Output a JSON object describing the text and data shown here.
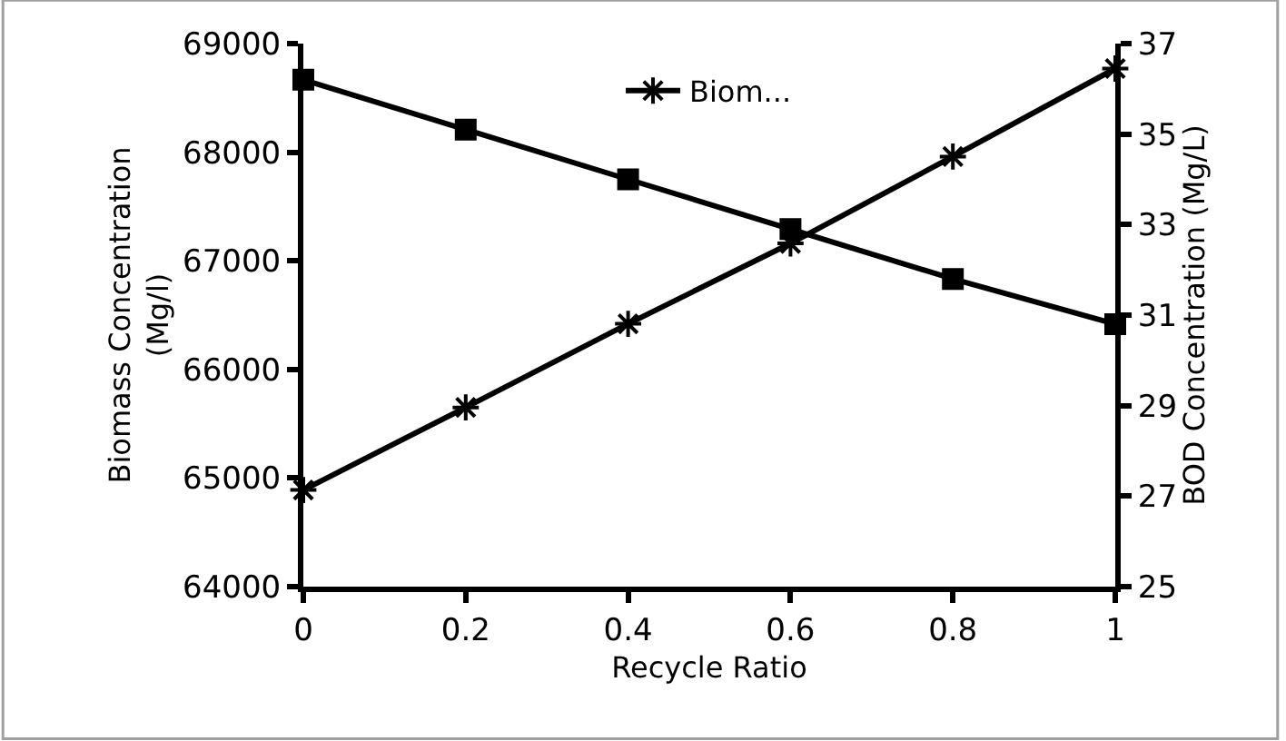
{
  "chart_data": {
    "type": "line",
    "xlabel": "Recycle Ratio",
    "ylabel": "Biomass Concentration (Mg/l)",
    "y2label": "BOD Concentration (Mg/L)",
    "x": [
      0,
      0.2,
      0.4,
      0.6,
      0.8,
      1
    ],
    "series": [
      {
        "name": "Biom...",
        "color": "#000000",
        "marker": "cross",
        "values": [
          64890,
          65650,
          66420,
          67160,
          67960,
          68770
        ]
      },
      {
        "color": "#000000",
        "marker": "square",
        "axis": "y2",
        "values": [
          36.2,
          35.1,
          34.0,
          32.9,
          31.8,
          30.8
        ]
      }
    ],
    "xlim": [
      0,
      1
    ],
    "xticks": [
      0,
      0.2,
      0.4,
      0.6,
      0.8,
      1
    ],
    "ylim": [
      64000,
      69000
    ],
    "yticks": [
      64000,
      65000,
      66000,
      67000,
      68000,
      69000
    ],
    "y2lim": [
      25,
      37
    ],
    "y2ticks": [
      25,
      27,
      29,
      31,
      33,
      35,
      37
    ],
    "legend": "top",
    "line_style": "solid"
  }
}
